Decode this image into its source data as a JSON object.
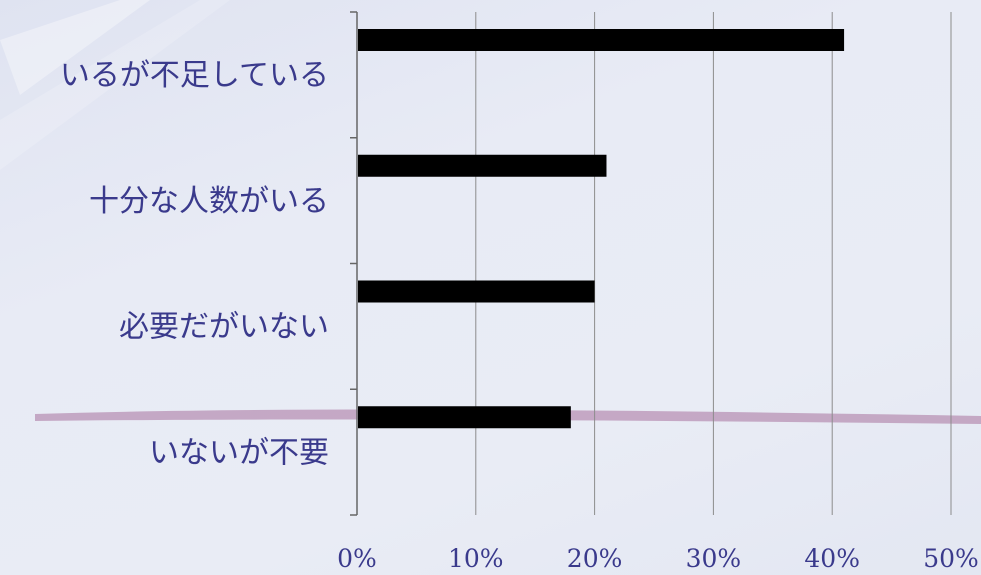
{
  "chart_data": {
    "type": "bar",
    "orientation": "horizontal",
    "categories": [
      "いるが不足している",
      "十分な人数がいる",
      "必要だがいない",
      "いないが不要"
    ],
    "values": [
      41,
      21,
      20,
      18
    ],
    "unit": "%",
    "xlim": [
      0,
      50
    ],
    "xticks": [
      "0%",
      "10%",
      "20%",
      "30%",
      "40%",
      "50%"
    ],
    "grid": true,
    "colors": {
      "bar": "#000000",
      "label": "#3a3a8c",
      "grid": "#8c8c8c",
      "background": "#e6e9f4"
    }
  }
}
